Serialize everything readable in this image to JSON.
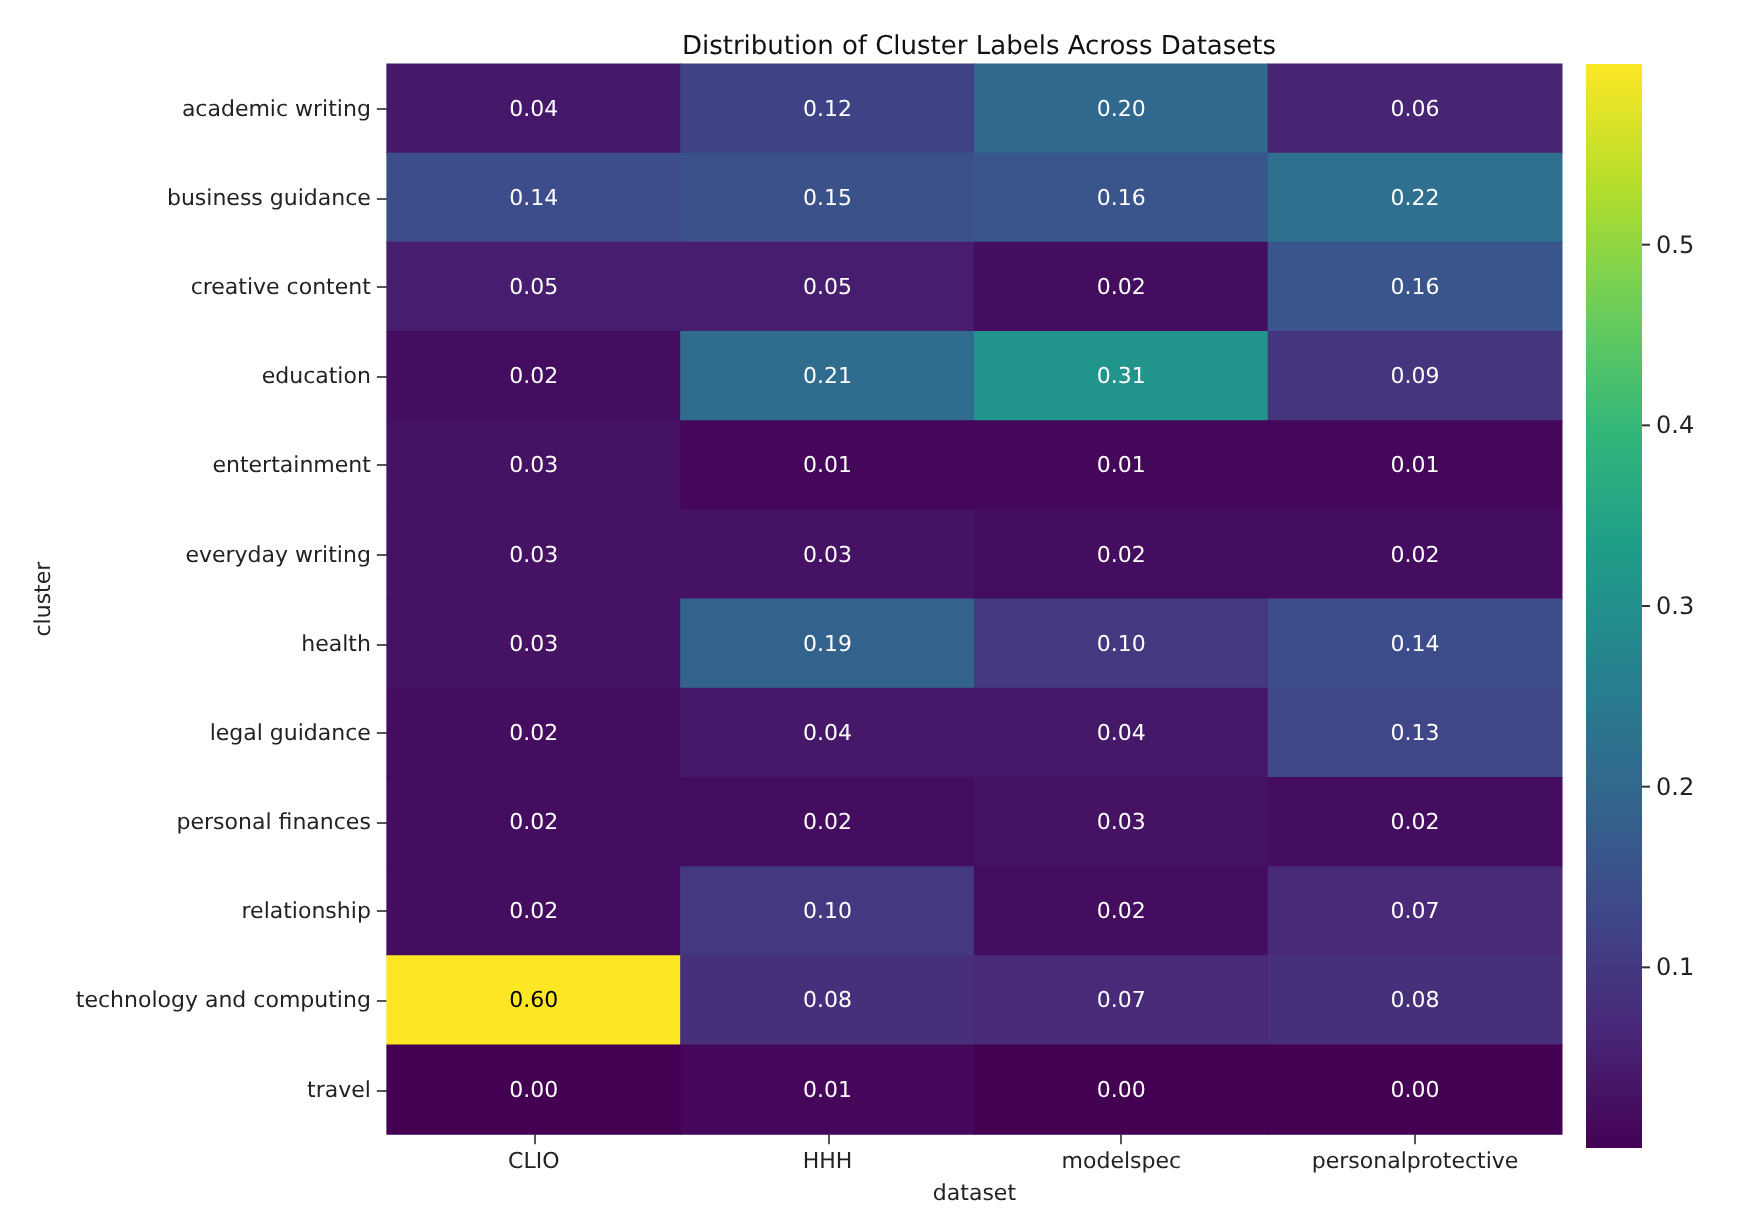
{
  "chart_data": {
    "type": "heatmap",
    "title": "Distribution of Cluster Labels Across Datasets",
    "xlabel": "dataset",
    "ylabel": "cluster",
    "categories": [
      "CLIO",
      "HHH",
      "modelspec",
      "personalprotective"
    ],
    "y_categories": [
      "academic writing",
      "business guidance",
      "creative content",
      "education",
      "entertainment",
      "everyday writing",
      "health",
      "legal guidance",
      "personal finances",
      "relationship",
      "technology and computing",
      "travel"
    ],
    "cells": [
      [
        0.04,
        0.12,
        0.2,
        0.06
      ],
      [
        0.14,
        0.15,
        0.16,
        0.22
      ],
      [
        0.05,
        0.05,
        0.02,
        0.16
      ],
      [
        0.02,
        0.21,
        0.31,
        0.09
      ],
      [
        0.03,
        0.01,
        0.01,
        0.01
      ],
      [
        0.03,
        0.03,
        0.02,
        0.02
      ],
      [
        0.03,
        0.19,
        0.1,
        0.14
      ],
      [
        0.02,
        0.04,
        0.04,
        0.13
      ],
      [
        0.02,
        0.02,
        0.03,
        0.02
      ],
      [
        0.02,
        0.1,
        0.02,
        0.07
      ],
      [
        0.6,
        0.08,
        0.07,
        0.08
      ],
      [
        0.0,
        0.01,
        0.0,
        0.0
      ]
    ],
    "cell_labels": [
      [
        "0.04",
        "0.12",
        "0.20",
        "0.06"
      ],
      [
        "0.14",
        "0.15",
        "0.16",
        "0.22"
      ],
      [
        "0.05",
        "0.05",
        "0.02",
        "0.16"
      ],
      [
        "0.02",
        "0.21",
        "0.31",
        "0.09"
      ],
      [
        "0.03",
        "0.01",
        "0.01",
        "0.01"
      ],
      [
        "0.03",
        "0.03",
        "0.02",
        "0.02"
      ],
      [
        "0.03",
        "0.19",
        "0.10",
        "0.14"
      ],
      [
        "0.02",
        "0.04",
        "0.04",
        "0.13"
      ],
      [
        "0.02",
        "0.02",
        "0.03",
        "0.02"
      ],
      [
        "0.02",
        "0.10",
        "0.02",
        "0.07"
      ],
      [
        "0.60",
        "0.08",
        "0.07",
        "0.08"
      ],
      [
        "0.00",
        "0.01",
        "0.00",
        "0.00"
      ]
    ],
    "clim": [
      0,
      0.6
    ],
    "cticks": [
      0.1,
      0.2,
      0.3,
      0.4,
      0.5
    ]
  }
}
